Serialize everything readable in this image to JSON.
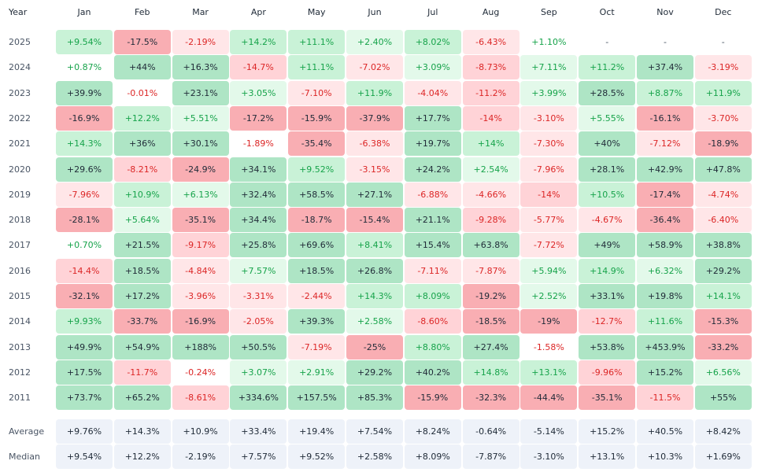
{
  "chart_data": {
    "type": "heatmap",
    "header_label": "Year",
    "months": [
      "Jan",
      "Feb",
      "Mar",
      "Apr",
      "May",
      "Jun",
      "Jul",
      "Aug",
      "Sep",
      "Oct",
      "Nov",
      "Dec"
    ],
    "rows": [
      {
        "year": "2025",
        "values": [
          "+9.54%",
          "-17.5%",
          "-2.19%",
          "+14.2%",
          "+11.1%",
          "+2.40%",
          "+8.02%",
          "-6.43%",
          "+1.10%",
          "-",
          "-",
          "-"
        ]
      },
      {
        "year": "2024",
        "values": [
          "+0.87%",
          "+44%",
          "+16.3%",
          "-14.7%",
          "+11.1%",
          "-7.02%",
          "+3.09%",
          "-8.73%",
          "+7.11%",
          "+11.2%",
          "+37.4%",
          "-3.19%"
        ]
      },
      {
        "year": "2023",
        "values": [
          "+39.9%",
          "-0.01%",
          "+23.1%",
          "+3.05%",
          "-7.10%",
          "+11.9%",
          "-4.04%",
          "-11.2%",
          "+3.99%",
          "+28.5%",
          "+8.87%",
          "+11.9%"
        ]
      },
      {
        "year": "2022",
        "values": [
          "-16.9%",
          "+12.2%",
          "+5.51%",
          "-17.2%",
          "-15.9%",
          "-37.9%",
          "+17.7%",
          "-14%",
          "-3.10%",
          "+5.55%",
          "-16.1%",
          "-3.70%"
        ]
      },
      {
        "year": "2021",
        "values": [
          "+14.3%",
          "+36%",
          "+30.1%",
          "-1.89%",
          "-35.4%",
          "-6.38%",
          "+19.7%",
          "+14%",
          "-7.30%",
          "+40%",
          "-7.12%",
          "-18.9%"
        ]
      },
      {
        "year": "2020",
        "values": [
          "+29.6%",
          "-8.21%",
          "-24.9%",
          "+34.1%",
          "+9.52%",
          "-3.15%",
          "+24.2%",
          "+2.54%",
          "-7.96%",
          "+28.1%",
          "+42.9%",
          "+47.8%"
        ]
      },
      {
        "year": "2019",
        "values": [
          "-7.96%",
          "+10.9%",
          "+6.13%",
          "+32.4%",
          "+58.5%",
          "+27.1%",
          "-6.88%",
          "-4.66%",
          "-14%",
          "+10.5%",
          "-17.4%",
          "-4.74%"
        ]
      },
      {
        "year": "2018",
        "values": [
          "-28.1%",
          "+5.64%",
          "-35.1%",
          "+34.4%",
          "-18.7%",
          "-15.4%",
          "+21.1%",
          "-9.28%",
          "-5.77%",
          "-4.67%",
          "-36.4%",
          "-6.40%"
        ]
      },
      {
        "year": "2017",
        "values": [
          "+0.70%",
          "+21.5%",
          "-9.17%",
          "+25.8%",
          "+69.6%",
          "+8.41%",
          "+15.4%",
          "+63.8%",
          "-7.72%",
          "+49%",
          "+58.9%",
          "+38.8%"
        ]
      },
      {
        "year": "2016",
        "values": [
          "-14.4%",
          "+18.5%",
          "-4.84%",
          "+7.57%",
          "+18.5%",
          "+26.8%",
          "-7.11%",
          "-7.87%",
          "+5.94%",
          "+14.9%",
          "+6.32%",
          "+29.2%"
        ]
      },
      {
        "year": "2015",
        "values": [
          "-32.1%",
          "+17.2%",
          "-3.96%",
          "-3.31%",
          "-2.44%",
          "+14.3%",
          "+8.09%",
          "-19.2%",
          "+2.52%",
          "+33.1%",
          "+19.8%",
          "+14.1%"
        ]
      },
      {
        "year": "2014",
        "values": [
          "+9.93%",
          "-33.7%",
          "-16.9%",
          "-2.05%",
          "+39.3%",
          "+2.58%",
          "-8.60%",
          "-18.5%",
          "-19%",
          "-12.7%",
          "+11.6%",
          "-15.3%"
        ]
      },
      {
        "year": "2013",
        "values": [
          "+49.9%",
          "+54.9%",
          "+188%",
          "+50.5%",
          "-7.19%",
          "-25%",
          "+8.80%",
          "+27.4%",
          "-1.58%",
          "+53.8%",
          "+453.9%",
          "-33.2%"
        ]
      },
      {
        "year": "2012",
        "values": [
          "+17.5%",
          "-11.7%",
          "-0.24%",
          "+3.07%",
          "+2.91%",
          "+29.2%",
          "+40.2%",
          "+14.8%",
          "+13.1%",
          "-9.96%",
          "+15.2%",
          "+6.56%"
        ]
      },
      {
        "year": "2011",
        "values": [
          "+73.7%",
          "+65.2%",
          "-8.61%",
          "+334.6%",
          "+157.5%",
          "+85.3%",
          "-15.9%",
          "-32.3%",
          "-44.4%",
          "-35.1%",
          "-11.5%",
          "+55%"
        ]
      }
    ],
    "summary": [
      {
        "label": "Average",
        "values": [
          "+9.76%",
          "+14.3%",
          "+10.9%",
          "+33.4%",
          "+19.4%",
          "+7.54%",
          "+8.24%",
          "-0.64%",
          "-5.14%",
          "+15.2%",
          "+40.5%",
          "+8.42%"
        ]
      },
      {
        "label": "Median",
        "values": [
          "+9.54%",
          "+12.2%",
          "-2.19%",
          "+7.57%",
          "+9.52%",
          "+2.58%",
          "+8.09%",
          "-7.87%",
          "-3.10%",
          "+13.1%",
          "+10.3%",
          "+1.69%"
        ]
      }
    ],
    "colors": {
      "positive_text": "#16a34a",
      "positive_strong_text": "#1f2a37",
      "negative_text": "#dc2626",
      "negative_strong_text": "#1f2a37",
      "neutral_text": "#4a5565",
      "summary_text": "#1f2a37",
      "summary_bg": "#eef2f9",
      "green_scale": [
        "#ffffff",
        "#e3f9ea",
        "#c9f2d7",
        "#aee5c5"
      ],
      "red_scale": [
        "#ffffff",
        "#ffe6e8",
        "#ffd3d7",
        "#f9aeb3"
      ]
    }
  }
}
